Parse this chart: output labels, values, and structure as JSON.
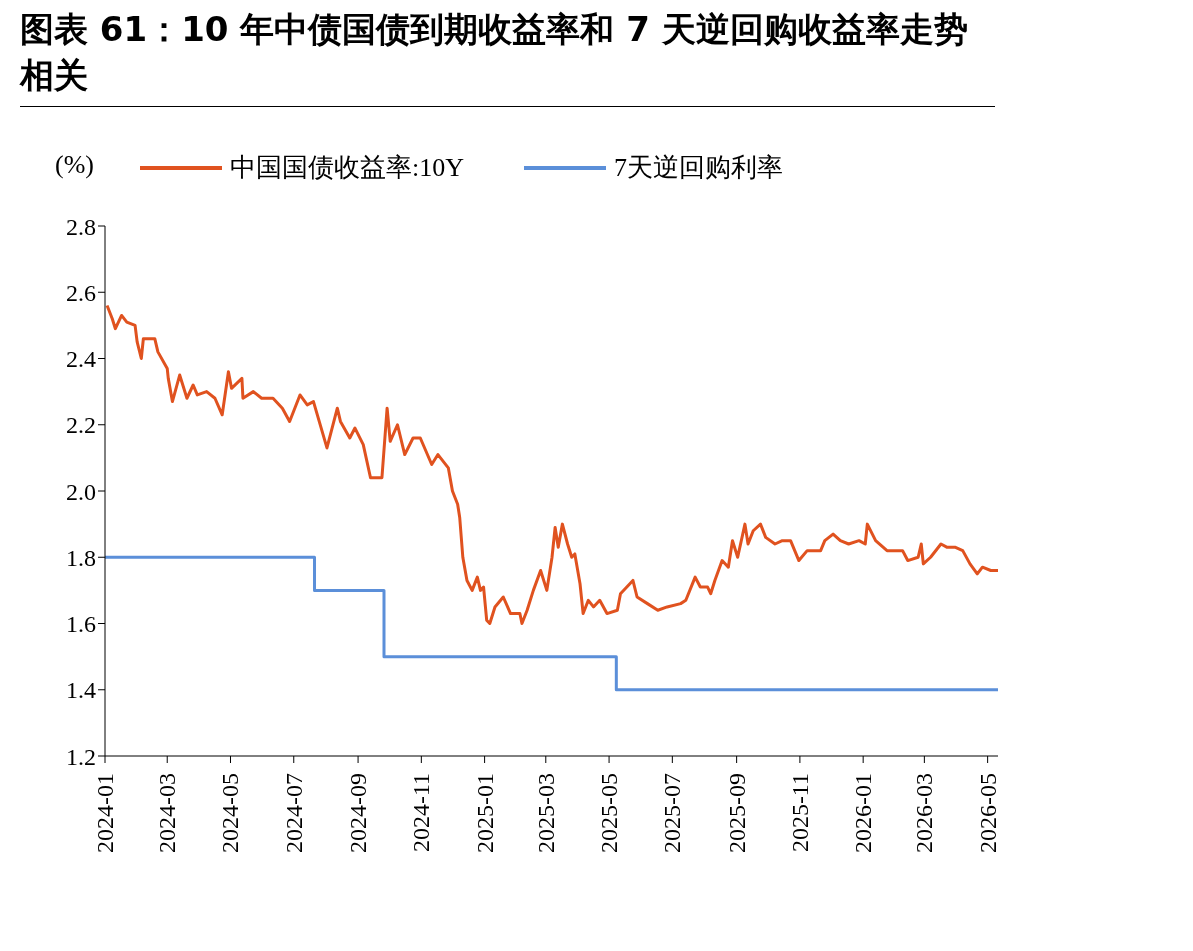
{
  "chart_data": {
    "type": "line",
    "title": "图表 61：10 年中债国债到期收益率和 7 天逆回购收益率走势相关",
    "ylabel": "(%)",
    "legend": "top",
    "grid": false,
    "xlim": [
      "2024-01-01",
      "2026-05-11"
    ],
    "xticks": [
      "2024-01",
      "2024-03",
      "2024-05",
      "2024-07",
      "2024-09",
      "2024-11",
      "2025-01",
      "2025-03",
      "2025-05",
      "2025-07",
      "2025-09",
      "2025-11",
      "2026-01",
      "2026-03",
      "2026-05"
    ],
    "ylim": [
      1.2,
      2.8
    ],
    "yticks": [
      1.2,
      1.4,
      1.6,
      1.8,
      {
        "value": 2,
        "label": "2.0"
      },
      2.2,
      2.4,
      2.6,
      2.8
    ],
    "series": [
      {
        "name": "中国国债收益率:10Y",
        "type": "line",
        "color": "#e0521f",
        "x": [
          "2024-01-03",
          "2024-01-08",
          "2024-01-11",
          "2024-01-17",
          "2024-01-22",
          "2024-01-30",
          "2024-02-01",
          "2024-02-05",
          "2024-02-07",
          "2024-02-18",
          "2024-02-21",
          "2024-03-01",
          "2024-03-02",
          "2024-03-06",
          "2024-03-13",
          "2024-03-20",
          "2024-03-26",
          "2024-03-30",
          "2024-04-08",
          "2024-04-16",
          "2024-04-23",
          "2024-04-29",
          "2024-05-02",
          "2024-05-12",
          "2024-05-13",
          "2024-05-23",
          "2024-05-31",
          "2024-06-11",
          "2024-06-20",
          "2024-06-27",
          "2024-07-07",
          "2024-07-14",
          "2024-07-20",
          "2024-08-02",
          "2024-08-12",
          "2024-08-15",
          "2024-08-24",
          "2024-08-29",
          "2024-09-06",
          "2024-09-13",
          "2024-09-24",
          "2024-09-29",
          "2024-10-02",
          "2024-10-09",
          "2024-10-16",
          "2024-10-24",
          "2024-10-31",
          "2024-11-11",
          "2024-11-17",
          "2024-11-27",
          "2024-12-01",
          "2024-12-06",
          "2024-12-08",
          "2024-12-11",
          "2024-12-15",
          "2024-12-20",
          "2024-12-25",
          "2024-12-28",
          "2024-12-31",
          "2025-01-03",
          "2025-01-06",
          "2025-01-11",
          "2025-01-19",
          "2025-01-26",
          "2025-02-04",
          "2025-02-06",
          "2025-02-11",
          "2025-02-17",
          "2025-02-24",
          "2025-03-02",
          "2025-03-07",
          "2025-03-10",
          "2025-03-13",
          "2025-03-17",
          "2025-03-22",
          "2025-03-26",
          "2025-03-29",
          "2025-04-03",
          "2025-04-06",
          "2025-04-11",
          "2025-04-16",
          "2025-04-22",
          "2025-04-29",
          "2025-05-09",
          "2025-05-12",
          "2025-05-24",
          "2025-05-28",
          "2025-06-07",
          "2025-06-17",
          "2025-06-26",
          "2025-07-09",
          "2025-07-14",
          "2025-07-23",
          "2025-07-28",
          "2025-08-04",
          "2025-08-07",
          "2025-08-11",
          "2025-08-18",
          "2025-08-24",
          "2025-08-28",
          "2025-09-02",
          "2025-09-09",
          "2025-09-12",
          "2025-09-17",
          "2025-09-24",
          "2025-09-29",
          "2025-10-08",
          "2025-10-15",
          "2025-10-23",
          "2025-10-31",
          "2025-11-08",
          "2025-11-21",
          "2025-11-25",
          "2025-12-03",
          "2025-12-10",
          "2025-12-18",
          "2025-12-28",
          "2026-01-03",
          "2026-01-05",
          "2026-01-13",
          "2026-01-24",
          "2026-01-30",
          "2026-02-08",
          "2026-02-13",
          "2026-02-23",
          "2026-02-26",
          "2026-02-28",
          "2026-03-07",
          "2026-03-17",
          "2026-03-23",
          "2026-03-31",
          "2026-04-07",
          "2026-04-14",
          "2026-04-21",
          "2026-04-26",
          "2026-05-04",
          "2026-05-11"
        ],
        "values": [
          2.56,
          2.52,
          2.49,
          2.53,
          2.51,
          2.5,
          2.45,
          2.4,
          2.46,
          2.46,
          2.42,
          2.37,
          2.34,
          2.27,
          2.35,
          2.28,
          2.32,
          2.29,
          2.3,
          2.28,
          2.23,
          2.36,
          2.31,
          2.34,
          2.28,
          2.3,
          2.28,
          2.28,
          2.25,
          2.21,
          2.29,
          2.26,
          2.27,
          2.13,
          2.25,
          2.21,
          2.16,
          2.19,
          2.14,
          2.04,
          2.04,
          2.25,
          2.15,
          2.2,
          2.11,
          2.16,
          2.16,
          2.08,
          2.11,
          2.07,
          2.0,
          1.96,
          1.92,
          1.8,
          1.73,
          1.7,
          1.74,
          1.7,
          1.71,
          1.61,
          1.6,
          1.65,
          1.68,
          1.63,
          1.63,
          1.6,
          1.64,
          1.7,
          1.76,
          1.7,
          1.8,
          1.89,
          1.83,
          1.9,
          1.84,
          1.8,
          1.81,
          1.72,
          1.63,
          1.67,
          1.65,
          1.67,
          1.63,
          1.64,
          1.69,
          1.73,
          1.68,
          1.66,
          1.64,
          1.65,
          1.66,
          1.67,
          1.74,
          1.71,
          1.71,
          1.69,
          1.73,
          1.79,
          1.77,
          1.85,
          1.8,
          1.9,
          1.84,
          1.88,
          1.9,
          1.86,
          1.84,
          1.85,
          1.85,
          1.79,
          1.82,
          1.82,
          1.85,
          1.87,
          1.85,
          1.84,
          1.85,
          1.84,
          1.9,
          1.85,
          1.82,
          1.82,
          1.82,
          1.79,
          1.8,
          1.84,
          1.78,
          1.8,
          1.84,
          1.83,
          1.83,
          1.82,
          1.78,
          1.75,
          1.77,
          1.76,
          1.76
        ]
      },
      {
        "name": "7天逆回购利率",
        "type": "step",
        "color": "#5b8fd9",
        "x": [
          "2024-01-01",
          "2024-07-21",
          "2024-09-26",
          "2025-05-08",
          "2026-05-11"
        ],
        "values": [
          1.8,
          1.7,
          1.5,
          1.4,
          1.4
        ]
      }
    ]
  }
}
